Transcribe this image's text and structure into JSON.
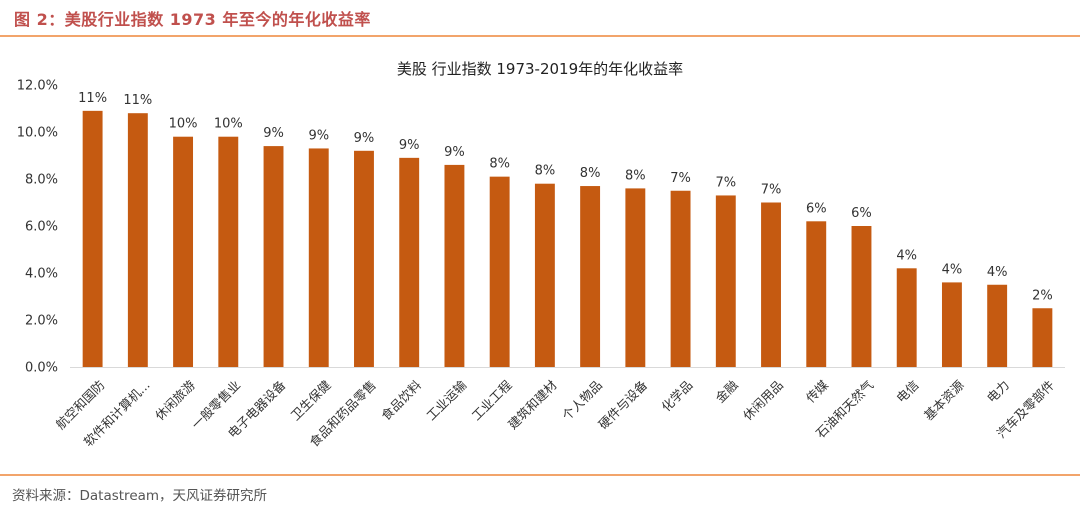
{
  "figure_title": "图 2：美股行业指数  1973 年至今的年化收益率",
  "source": "资料来源：Datastream，天风证券研究所",
  "colors": {
    "bar": "#c55a11",
    "accent_rule": "#f2a46b",
    "title": "#c0504d"
  },
  "chart_data": {
    "type": "bar",
    "title": "美股 行业指数 1973-2019年的年化收益率",
    "xlabel": "",
    "ylabel": "",
    "ylim": [
      0,
      12
    ],
    "yticks": [
      "0.0%",
      "2.0%",
      "4.0%",
      "6.0%",
      "8.0%",
      "10.0%",
      "12.0%"
    ],
    "categories": [
      "航空和国防",
      "软件和计算机...",
      "休闲旅游",
      "一般零售业",
      "电子电器设备",
      "卫生保健",
      "食品和药品零售",
      "食品饮料",
      "工业运输",
      "工业工程",
      "建筑和建材",
      "个人物品",
      "硬件与设备",
      "化学品",
      "金融",
      "休闲用品",
      "传媒",
      "石油和天然气",
      "电信",
      "基本资源",
      "电力",
      "汽车及零部件"
    ],
    "values": [
      10.9,
      10.8,
      9.8,
      9.8,
      9.4,
      9.3,
      9.2,
      8.9,
      8.6,
      8.1,
      7.8,
      7.7,
      7.6,
      7.5,
      7.3,
      7.0,
      6.2,
      6.0,
      4.2,
      3.6,
      3.5,
      2.5
    ],
    "data_labels": [
      "11%",
      "11%",
      "10%",
      "10%",
      "9%",
      "9%",
      "9%",
      "9%",
      "9%",
      "8%",
      "8%",
      "8%",
      "8%",
      "7%",
      "7%",
      "7%",
      "6%",
      "6%",
      "4%",
      "4%",
      "4%",
      "2%"
    ],
    "grid": false,
    "legend": "none"
  }
}
